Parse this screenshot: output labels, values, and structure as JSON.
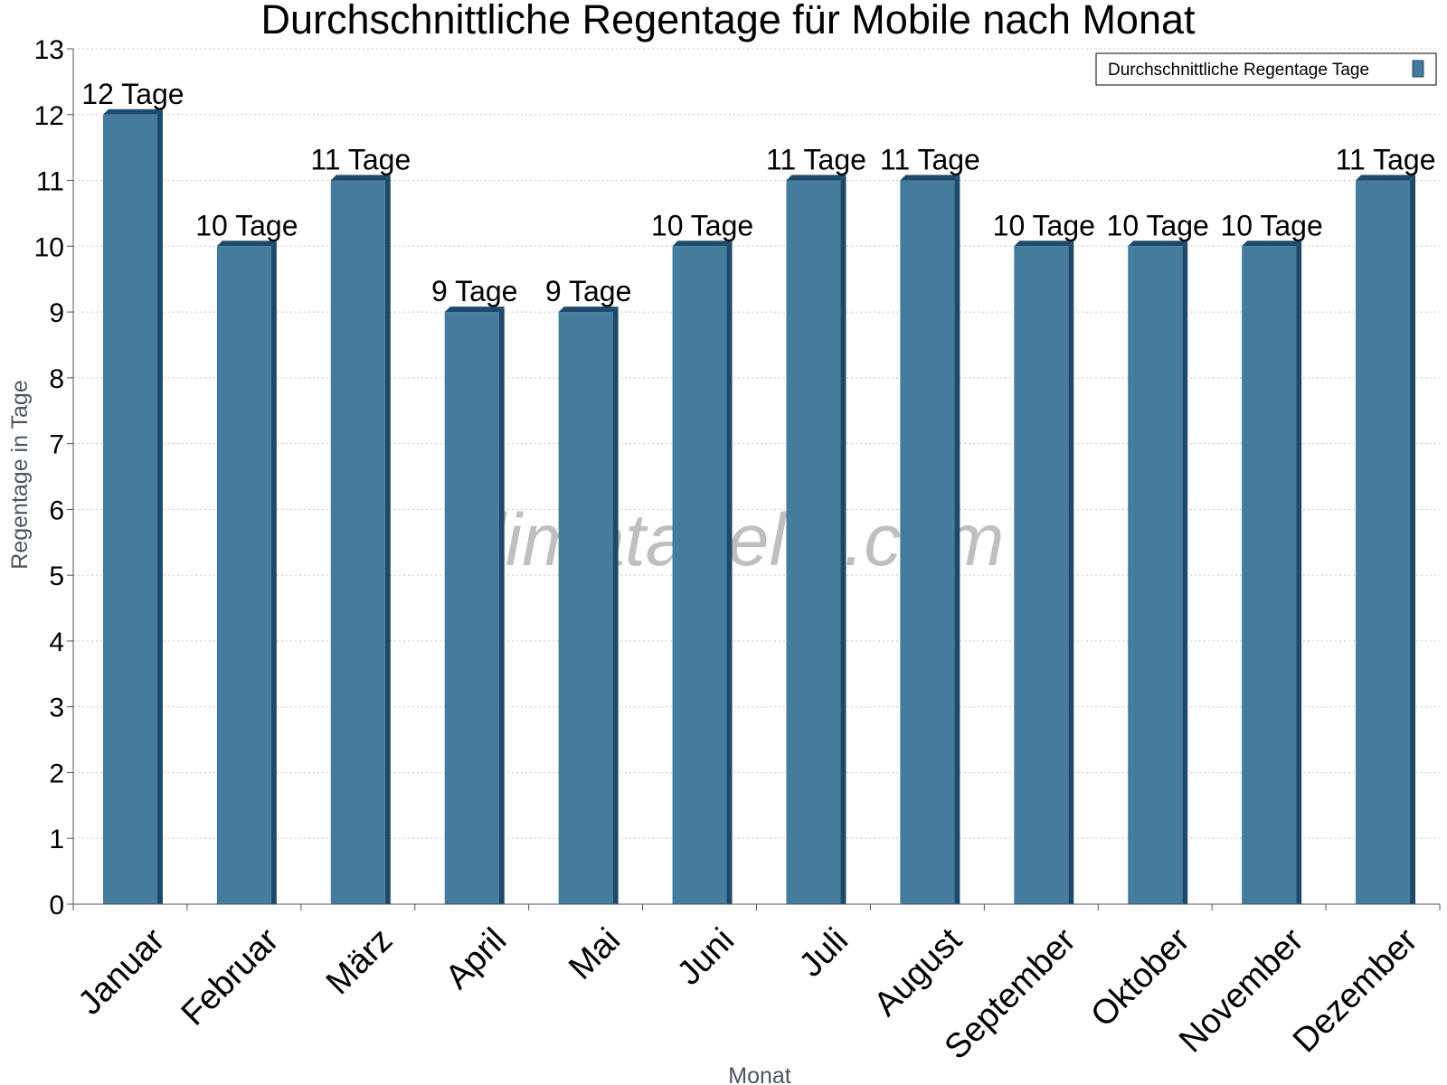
{
  "colors": {
    "bar_front": "#457b9d",
    "bar_side": "#1d4a6b",
    "bar_top": "#1d4a6b",
    "grid": "#c8c8c8",
    "axis": "#555555"
  },
  "watermark": "klimatabelle.com",
  "chart_data": {
    "type": "bar",
    "title": "Durchschnittliche Regentage für Mobile nach Monat",
    "xlabel": "Monat",
    "ylabel": "Regentage in Tage",
    "ylim": [
      0,
      13
    ],
    "yticks": [
      "0",
      "1",
      "2",
      "3",
      "4",
      "5",
      "6",
      "7",
      "8",
      "9",
      "10",
      "11",
      "12",
      "13"
    ],
    "grid": true,
    "legend_position": "top-right",
    "categories": [
      "Januar",
      "Februar",
      "März",
      "April",
      "Mai",
      "Juni",
      "Juli",
      "August",
      "September",
      "Oktober",
      "November",
      "Dezember"
    ],
    "series": [
      {
        "name": "Durchschnittliche Regentage Tage",
        "values": [
          12,
          10,
          11,
          9,
          9,
          10,
          11,
          11,
          10,
          10,
          10,
          11
        ],
        "labels": [
          "12 Tage",
          "10 Tage",
          "11 Tage",
          "9 Tage",
          "9 Tage",
          "10 Tage",
          "11 Tage",
          "11 Tage",
          "10 Tage",
          "10 Tage",
          "10 Tage",
          "11 Tage"
        ]
      }
    ]
  }
}
